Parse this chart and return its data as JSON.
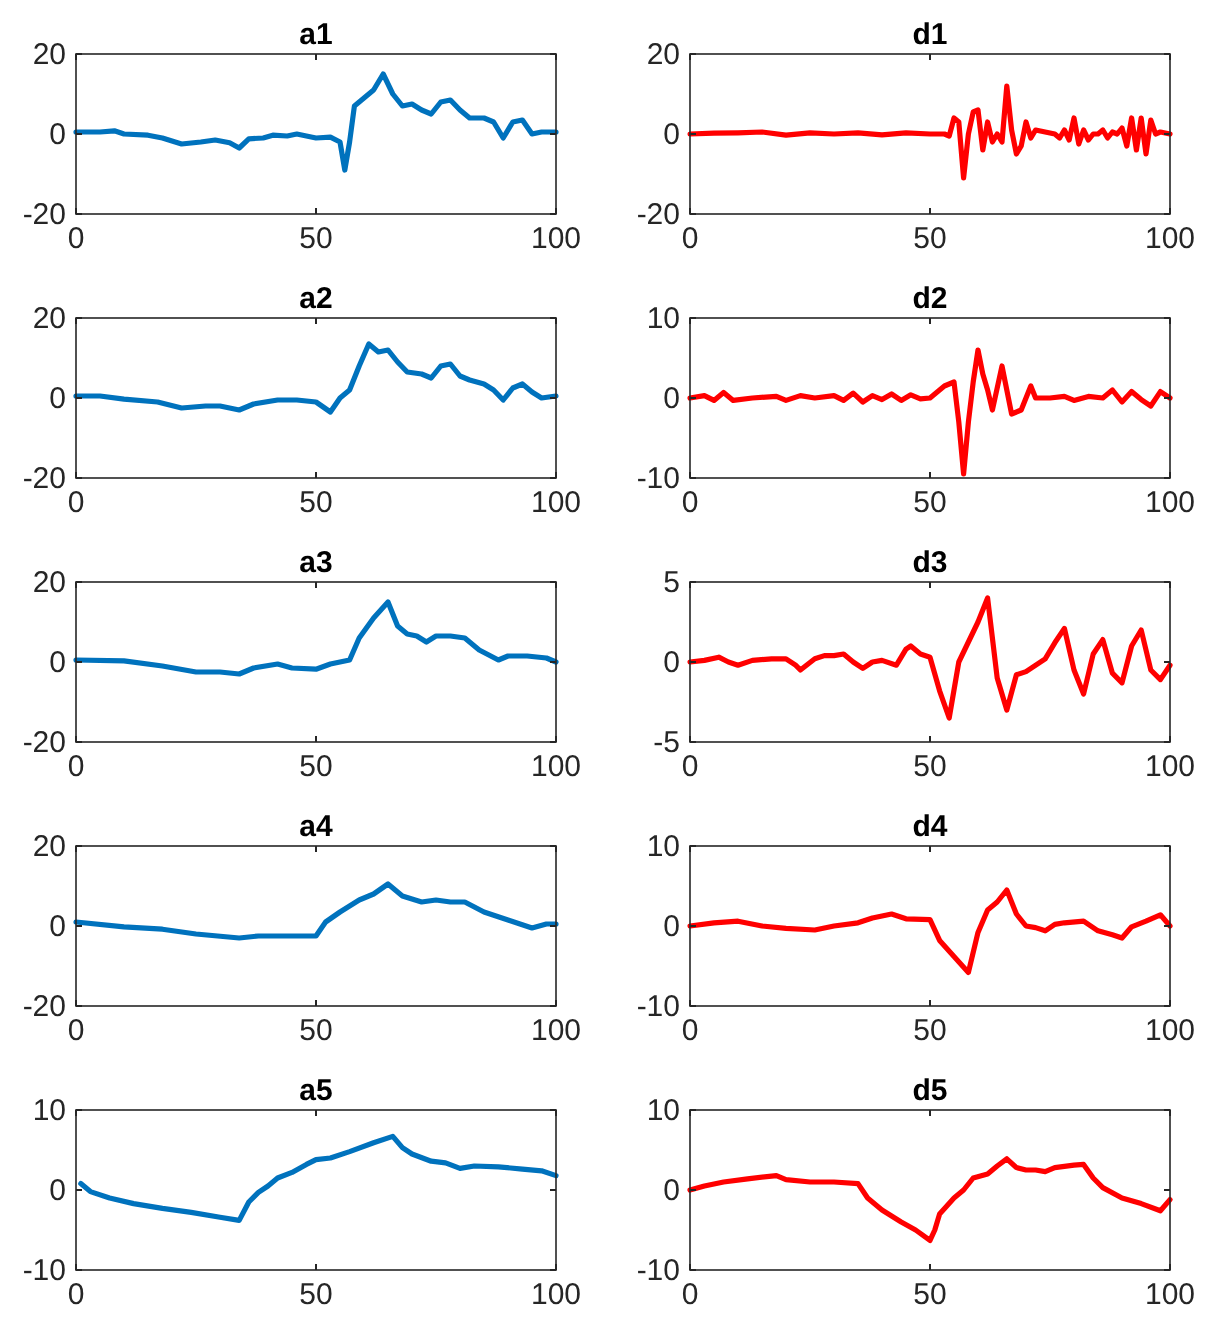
{
  "chart_data": [
    {
      "type": "line",
      "title": "a1",
      "xlim": [
        0,
        100
      ],
      "xticks": [
        0,
        50,
        100
      ],
      "ylim": [
        -20,
        20
      ],
      "yticks": [
        -20,
        0,
        20
      ],
      "grid": false,
      "x": [
        0,
        5,
        8,
        10,
        15,
        18,
        22,
        26,
        29,
        32,
        34,
        36,
        39,
        41,
        44,
        46,
        50,
        53,
        55,
        56,
        57,
        58,
        60,
        62,
        64,
        66,
        68,
        70,
        72,
        74,
        76,
        78,
        80,
        82,
        85,
        87,
        89,
        91,
        93,
        95,
        97,
        100
      ],
      "series": [
        {
          "color": "#0072bd",
          "values": [
            0.5,
            0.5,
            0.8,
            0,
            -0.3,
            -1,
            -2.5,
            -2,
            -1.5,
            -2.2,
            -3.5,
            -1.2,
            -1,
            -0.3,
            -0.5,
            0,
            -1,
            -0.8,
            -2,
            -9,
            -2,
            7,
            9,
            11,
            15,
            10,
            7,
            7.5,
            6,
            5,
            8,
            8.5,
            6,
            4,
            4,
            3,
            -1,
            3,
            3.5,
            0,
            0.5,
            0.5
          ]
        }
      ]
    },
    {
      "type": "line",
      "title": "d1",
      "xlim": [
        0,
        100
      ],
      "xticks": [
        0,
        50,
        100
      ],
      "ylim": [
        -20,
        20
      ],
      "yticks": [
        -20,
        0,
        20
      ],
      "grid": false,
      "x": [
        0,
        5,
        10,
        15,
        20,
        25,
        30,
        35,
        40,
        45,
        50,
        53,
        54,
        55,
        56,
        57,
        58,
        59,
        60,
        61,
        62,
        63,
        64,
        65,
        66,
        67,
        68,
        69,
        70,
        71,
        72,
        74,
        76,
        77,
        78,
        79,
        80,
        81,
        82,
        83,
        84,
        85,
        86,
        87,
        88,
        89,
        90,
        91,
        92,
        93,
        94,
        95,
        96,
        97,
        98,
        100
      ],
      "series": [
        {
          "color": "#ff0000",
          "values": [
            0,
            0.2,
            0.3,
            0.5,
            -0.3,
            0.3,
            0,
            0.3,
            -0.2,
            0.3,
            0,
            0,
            -0.5,
            4,
            3,
            -11,
            0,
            5.5,
            6,
            -4,
            3,
            -2,
            0,
            -2,
            12,
            1,
            -5,
            -3,
            3,
            -1,
            1,
            0.5,
            0,
            -1,
            1,
            -1.5,
            4,
            -2.5,
            1,
            -1.5,
            0,
            0,
            1,
            -1,
            0.5,
            0,
            1.5,
            -3,
            4,
            -4,
            4,
            -5,
            3.5,
            0,
            0.5,
            0
          ]
        }
      ]
    },
    {
      "type": "line",
      "title": "a2",
      "xlim": [
        0,
        100
      ],
      "xticks": [
        0,
        50,
        100
      ],
      "ylim": [
        -20,
        20
      ],
      "yticks": [
        -20,
        0,
        20
      ],
      "grid": false,
      "x": [
        0,
        5,
        10,
        17,
        22,
        27,
        30,
        34,
        37,
        42,
        46,
        50,
        53,
        55,
        57,
        59,
        61,
        63,
        65,
        67,
        69,
        72,
        74,
        76,
        78,
        80,
        82,
        85,
        87,
        89,
        91,
        93,
        95,
        97,
        100
      ],
      "series": [
        {
          "color": "#0072bd",
          "values": [
            0.5,
            0.5,
            -0.3,
            -1,
            -2.5,
            -2,
            -2,
            -3,
            -1.5,
            -0.5,
            -0.5,
            -1,
            -3.5,
            0,
            2,
            8,
            13.5,
            11.5,
            12,
            9,
            6.5,
            6,
            5,
            8,
            8.5,
            5.5,
            4.5,
            3.5,
            2,
            -0.5,
            2.5,
            3.5,
            1.5,
            0,
            0.5
          ]
        }
      ]
    },
    {
      "type": "line",
      "title": "d2",
      "xlim": [
        0,
        100
      ],
      "xticks": [
        0,
        50,
        100
      ],
      "ylim": [
        -10,
        10
      ],
      "yticks": [
        -10,
        0,
        10
      ],
      "grid": false,
      "x": [
        0,
        3,
        5,
        7,
        9,
        13,
        18,
        20,
        23,
        26,
        30,
        32,
        34,
        36,
        38,
        40,
        42,
        44,
        46,
        48,
        50,
        53,
        55,
        56,
        57,
        58,
        59,
        60,
        61,
        62,
        63,
        65,
        66,
        67,
        69,
        71,
        72,
        75,
        78,
        80,
        83,
        86,
        88,
        90,
        92,
        94,
        96,
        98,
        100
      ],
      "series": [
        {
          "color": "#ff0000",
          "values": [
            0,
            0.3,
            -0.3,
            0.7,
            -0.3,
            0,
            0.2,
            -0.3,
            0.3,
            0,
            0.3,
            -0.3,
            0.6,
            -0.5,
            0.3,
            -0.2,
            0.5,
            -0.3,
            0.4,
            -0.1,
            0,
            1.5,
            2,
            -3,
            -9.5,
            -3,
            2,
            6,
            3,
            1,
            -1.5,
            4,
            1,
            -2,
            -1.5,
            1.5,
            0,
            0,
            0.2,
            -0.3,
            0.2,
            0,
            1,
            -0.5,
            0.8,
            -0.2,
            -1,
            0.8,
            0
          ]
        }
      ]
    },
    {
      "type": "line",
      "title": "a3",
      "xlim": [
        0,
        100
      ],
      "xticks": [
        0,
        50,
        100
      ],
      "ylim": [
        -20,
        20
      ],
      "yticks": [
        -20,
        0,
        20
      ],
      "grid": false,
      "x": [
        0,
        10,
        18,
        25,
        30,
        34,
        37,
        42,
        45,
        50,
        53,
        57,
        59,
        62,
        65,
        67,
        69,
        71,
        73,
        75,
        78,
        81,
        84,
        88,
        90,
        94,
        98,
        100
      ],
      "series": [
        {
          "color": "#0072bd",
          "values": [
            0.5,
            0.3,
            -1,
            -2.5,
            -2.5,
            -3,
            -1.5,
            -0.5,
            -1.5,
            -1.8,
            -0.5,
            0.5,
            6,
            11,
            15,
            9,
            7,
            6.5,
            5,
            6.5,
            6.5,
            6,
            3,
            0.5,
            1.5,
            1.5,
            1,
            0
          ]
        }
      ]
    },
    {
      "type": "line",
      "title": "d3",
      "xlim": [
        0,
        100
      ],
      "xticks": [
        0,
        50,
        100
      ],
      "ylim": [
        -5,
        5
      ],
      "yticks": [
        -5,
        0,
        5
      ],
      "grid": false,
      "x": [
        0,
        3,
        6,
        8,
        10,
        13,
        17,
        20,
        22,
        23,
        26,
        28,
        30,
        32,
        34,
        36,
        38,
        40,
        43,
        45,
        46,
        48,
        50,
        52,
        54,
        56,
        60,
        62,
        64,
        66,
        68,
        70,
        74,
        76,
        78,
        80,
        82,
        84,
        86,
        88,
        90,
        92,
        94,
        96,
        98,
        100
      ],
      "series": [
        {
          "color": "#ff0000",
          "values": [
            0,
            0.1,
            0.3,
            0,
            -0.2,
            0.1,
            0.2,
            0.2,
            -0.2,
            -0.5,
            0.2,
            0.4,
            0.4,
            0.5,
            0,
            -0.4,
            0,
            0.1,
            -0.2,
            0.8,
            1,
            0.5,
            0.3,
            -1.8,
            -3.5,
            0,
            2.5,
            4,
            -1,
            -3,
            -0.8,
            -0.6,
            0.2,
            1.2,
            2.1,
            -0.5,
            -2,
            0.5,
            1.4,
            -0.7,
            -1.3,
            1,
            2,
            -0.5,
            -1.1,
            -0.2
          ]
        }
      ]
    },
    {
      "type": "line",
      "title": "a4",
      "xlim": [
        0,
        100
      ],
      "xticks": [
        0,
        50,
        100
      ],
      "ylim": [
        -20,
        20
      ],
      "yticks": [
        -20,
        0,
        20
      ],
      "grid": false,
      "x": [
        0,
        10,
        18,
        25,
        34,
        38,
        45,
        50,
        52,
        55,
        59,
        62,
        65,
        68,
        72,
        75,
        78,
        81,
        85,
        90,
        95,
        98,
        100
      ],
      "series": [
        {
          "color": "#0072bd",
          "values": [
            1,
            -0.2,
            -0.8,
            -2,
            -3,
            -2.5,
            -2.5,
            -2.5,
            1,
            3.5,
            6.5,
            8,
            10.5,
            7.5,
            6,
            6.5,
            6,
            6,
            3.5,
            1.5,
            -0.5,
            0.5,
            0.5
          ]
        }
      ]
    },
    {
      "type": "line",
      "title": "d4",
      "xlim": [
        0,
        100
      ],
      "xticks": [
        0,
        50,
        100
      ],
      "ylim": [
        -10,
        10
      ],
      "yticks": [
        -10,
        0,
        10
      ],
      "grid": false,
      "x": [
        0,
        5,
        10,
        15,
        20,
        26,
        30,
        35,
        38,
        42,
        45,
        50,
        52,
        55,
        58,
        60,
        62,
        64,
        66,
        68,
        70,
        72,
        74,
        76,
        78,
        82,
        85,
        88,
        90,
        92,
        95,
        98,
        100
      ],
      "series": [
        {
          "color": "#ff0000",
          "values": [
            0,
            0.4,
            0.6,
            0,
            -0.3,
            -0.5,
            0,
            0.4,
            1,
            1.5,
            0.9,
            0.8,
            -1.8,
            -3.8,
            -5.8,
            -0.8,
            2,
            3,
            4.5,
            1.5,
            0,
            -0.2,
            -0.6,
            0.2,
            0.4,
            0.6,
            -0.6,
            -1.1,
            -1.5,
            -0.1,
            0.6,
            1.4,
            0
          ]
        }
      ]
    },
    {
      "type": "line",
      "title": "a5",
      "xlim": [
        0,
        100
      ],
      "xticks": [
        0,
        50,
        100
      ],
      "ylim": [
        -10,
        10
      ],
      "yticks": [
        -10,
        0,
        10
      ],
      "grid": false,
      "x": [
        1,
        3,
        7,
        12,
        18,
        24,
        30,
        34,
        36,
        38,
        40,
        42,
        45,
        48,
        50,
        53,
        57,
        62,
        66,
        68,
        70,
        74,
        77,
        80,
        83,
        88,
        93,
        97,
        100
      ],
      "series": [
        {
          "color": "#0072bd",
          "values": [
            0.8,
            -0.2,
            -1,
            -1.7,
            -2.3,
            -2.8,
            -3.4,
            -3.8,
            -1.5,
            -0.3,
            0.5,
            1.5,
            2.2,
            3.2,
            3.8,
            4,
            4.8,
            5.9,
            6.7,
            5.3,
            4.5,
            3.6,
            3.4,
            2.7,
            3,
            2.9,
            2.6,
            2.4,
            1.8
          ]
        }
      ]
    },
    {
      "type": "line",
      "title": "d5",
      "xlim": [
        0,
        100
      ],
      "xticks": [
        0,
        50,
        100
      ],
      "ylim": [
        -10,
        10
      ],
      "yticks": [
        -10,
        0,
        10
      ],
      "grid": false,
      "x": [
        0,
        3,
        7,
        12,
        18,
        20,
        25,
        30,
        35,
        37,
        40,
        44,
        47,
        50,
        51,
        52,
        55,
        57,
        59,
        62,
        64,
        66,
        68,
        70,
        72,
        74,
        76,
        80,
        82,
        84,
        86,
        90,
        94,
        98,
        100
      ],
      "series": [
        {
          "color": "#ff0000",
          "values": [
            0,
            0.5,
            1,
            1.4,
            1.8,
            1.3,
            1,
            1,
            0.8,
            -1,
            -2.5,
            -4,
            -5,
            -6.3,
            -5,
            -3,
            -1,
            0,
            1.5,
            2,
            3,
            3.9,
            2.8,
            2.5,
            2.5,
            2.3,
            2.8,
            3.1,
            3.2,
            1.5,
            0.3,
            -1,
            -1.7,
            -2.6,
            -1.2
          ]
        }
      ]
    }
  ]
}
